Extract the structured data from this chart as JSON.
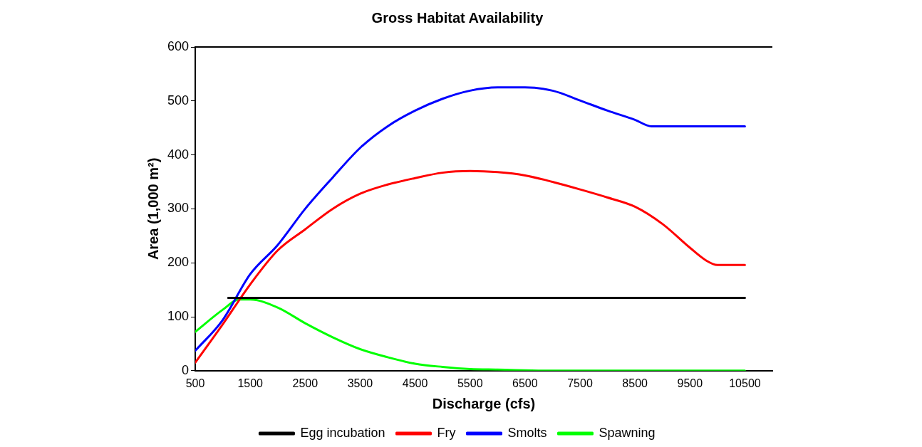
{
  "chart_data": {
    "type": "line",
    "title": "Gross Habitat Availability",
    "xlabel": "Discharge (cfs)",
    "ylabel": "Area (1,000 m²)",
    "xlim": [
      500,
      11000
    ],
    "xticks": [
      500,
      1500,
      2500,
      3500,
      4500,
      5500,
      6500,
      7500,
      8500,
      9500,
      10500
    ],
    "ylim": [
      0,
      600
    ],
    "yticks": [
      0,
      100,
      200,
      300,
      400,
      500,
      600
    ],
    "grid": false,
    "legend": "bottom",
    "marker": "none",
    "line_style": "solid",
    "series": [
      {
        "name": "Egg incubation",
        "color": "#000000",
        "x": [
          1100,
          10500
        ],
        "values": [
          135,
          135
        ]
      },
      {
        "name": "Fry",
        "color": "#ff0000",
        "x": [
          500,
          1000,
          1500,
          2000,
          2500,
          3000,
          3500,
          4000,
          4500,
          5000,
          5500,
          6000,
          6500,
          7000,
          7500,
          8000,
          8500,
          9000,
          9500,
          9800,
          10000,
          10500
        ],
        "values": [
          15,
          86,
          160,
          223,
          262,
          300,
          328,
          345,
          357,
          367,
          370,
          368,
          362,
          350,
          336,
          321,
          304,
          272,
          228,
          204,
          196,
          196
        ]
      },
      {
        "name": "Smolts",
        "color": "#0000ff",
        "x": [
          500,
          1000,
          1500,
          2000,
          2500,
          3000,
          3500,
          4000,
          4500,
          5000,
          5500,
          6000,
          6500,
          7000,
          7500,
          8000,
          8500,
          8800,
          10500
        ],
        "values": [
          37,
          94,
          179,
          233,
          300,
          358,
          413,
          453,
          482,
          504,
          519,
          525,
          525,
          519,
          501,
          482,
          465,
          453,
          453
        ]
      },
      {
        "name": "Spawning",
        "color": "#00ff00",
        "x": [
          500,
          1000,
          1300,
          1500,
          2000,
          2500,
          3000,
          3500,
          4000,
          4500,
          5000,
          5500,
          6000,
          7000,
          10500
        ],
        "values": [
          72,
          113,
          132,
          132,
          117,
          88,
          62,
          40,
          25,
          13,
          7,
          3,
          2,
          0,
          0
        ]
      }
    ]
  }
}
